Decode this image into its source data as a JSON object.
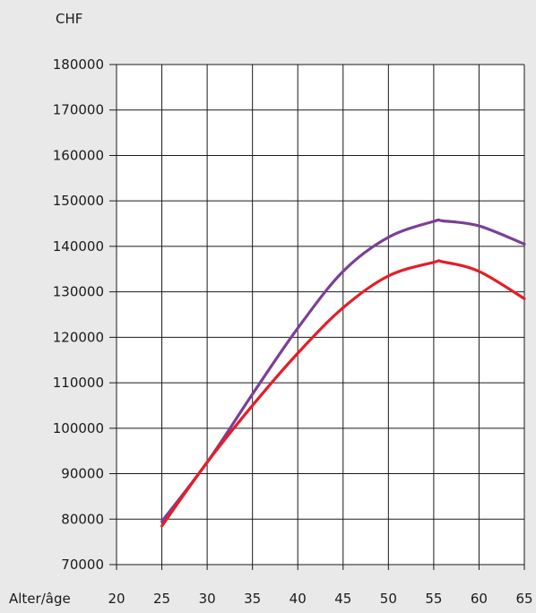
{
  "chart_data": {
    "type": "line",
    "unit_label": "CHF",
    "xlabel": "Alter/âge",
    "ylabel": "",
    "x": [
      25,
      30,
      35,
      40,
      45,
      50,
      55,
      56,
      60,
      65
    ],
    "x_ticks": [
      "20",
      "25",
      "30",
      "35",
      "40",
      "45",
      "50",
      "55",
      "60",
      "65"
    ],
    "y_ticks": [
      "70000",
      "80000",
      "90000",
      "100000",
      "110000",
      "120000",
      "130000",
      "140000",
      "150000",
      "160000",
      "170000",
      "180000"
    ],
    "xlim": [
      20,
      65
    ],
    "ylim": [
      70000,
      180000
    ],
    "grid": true,
    "series": [
      {
        "color": "#7b3f98",
        "x": [
          25,
          30,
          35,
          40,
          45,
          50,
          55,
          56,
          60,
          65
        ],
        "y": [
          79500,
          92500,
          107500,
          122000,
          134500,
          142000,
          145500,
          145600,
          144500,
          140500
        ]
      },
      {
        "color": "#e41e26",
        "x": [
          25,
          30,
          35,
          40,
          45,
          50,
          55,
          56,
          60,
          65
        ],
        "y": [
          78500,
          92500,
          105000,
          116500,
          126500,
          133500,
          136500,
          136600,
          134500,
          128500
        ]
      }
    ]
  }
}
